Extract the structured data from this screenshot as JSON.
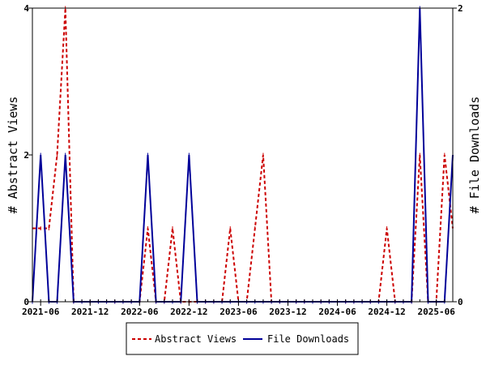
{
  "chart_data": {
    "type": "line",
    "x_ticks": [
      "2021-06",
      "2021-12",
      "2022-06",
      "2022-12",
      "2023-06",
      "2023-12",
      "2024-06",
      "2024-12",
      "2025-06"
    ],
    "x_range": [
      "2021-05",
      "2025-08"
    ],
    "y_left": {
      "label": "# Abstract Views",
      "ticks": [
        0,
        2,
        4
      ],
      "range": [
        0,
        4
      ]
    },
    "y_right": {
      "label": "# File Downloads",
      "ticks": [
        0,
        2
      ],
      "range": [
        0,
        2
      ]
    },
    "series": [
      {
        "name": "Abstract Views",
        "axis": "left",
        "color": "#cc0000",
        "style": "dashed",
        "points": [
          [
            "2021-05",
            1
          ],
          [
            "2021-06",
            1
          ],
          [
            "2021-07",
            1
          ],
          [
            "2021-08",
            2
          ],
          [
            "2021-09",
            4
          ],
          [
            "2021-10",
            0
          ],
          [
            "2021-11",
            0
          ],
          [
            "2021-12",
            0
          ],
          [
            "2022-01",
            0
          ],
          [
            "2022-02",
            0
          ],
          [
            "2022-03",
            0
          ],
          [
            "2022-04",
            0
          ],
          [
            "2022-05",
            0
          ],
          [
            "2022-06",
            0
          ],
          [
            "2022-07",
            1
          ],
          [
            "2022-08",
            0
          ],
          [
            "2022-09",
            0
          ],
          [
            "2022-10",
            1
          ],
          [
            "2022-11",
            0
          ],
          [
            "2022-12",
            0
          ],
          [
            "2023-01",
            0
          ],
          [
            "2023-02",
            0
          ],
          [
            "2023-03",
            0
          ],
          [
            "2023-04",
            0
          ],
          [
            "2023-05",
            1
          ],
          [
            "2023-06",
            0
          ],
          [
            "2023-07",
            0
          ],
          [
            "2023-08",
            1
          ],
          [
            "2023-09",
            2
          ],
          [
            "2023-10",
            0
          ],
          [
            "2023-11",
            0
          ],
          [
            "2023-12",
            0
          ],
          [
            "2024-01",
            0
          ],
          [
            "2024-02",
            0
          ],
          [
            "2024-03",
            0
          ],
          [
            "2024-04",
            0
          ],
          [
            "2024-05",
            0
          ],
          [
            "2024-06",
            0
          ],
          [
            "2024-07",
            0
          ],
          [
            "2024-08",
            0
          ],
          [
            "2024-09",
            0
          ],
          [
            "2024-10",
            0
          ],
          [
            "2024-11",
            0
          ],
          [
            "2024-12",
            1
          ],
          [
            "2025-01",
            0
          ],
          [
            "2025-02",
            0
          ],
          [
            "2025-03",
            0
          ],
          [
            "2025-04",
            2
          ],
          [
            "2025-05",
            0
          ],
          [
            "2025-06",
            0
          ],
          [
            "2025-07",
            2
          ],
          [
            "2025-08",
            1
          ]
        ]
      },
      {
        "name": "File Downloads",
        "axis": "right",
        "color": "#000099",
        "style": "solid",
        "points": [
          [
            "2021-05",
            0
          ],
          [
            "2021-06",
            1
          ],
          [
            "2021-07",
            0
          ],
          [
            "2021-08",
            0
          ],
          [
            "2021-09",
            1
          ],
          [
            "2021-10",
            0
          ],
          [
            "2021-11",
            0
          ],
          [
            "2021-12",
            0
          ],
          [
            "2022-01",
            0
          ],
          [
            "2022-02",
            0
          ],
          [
            "2022-03",
            0
          ],
          [
            "2022-04",
            0
          ],
          [
            "2022-05",
            0
          ],
          [
            "2022-06",
            0
          ],
          [
            "2022-07",
            1
          ],
          [
            "2022-08",
            0
          ],
          [
            "2022-09",
            0
          ],
          [
            "2022-10",
            0
          ],
          [
            "2022-11",
            0
          ],
          [
            "2022-12",
            1
          ],
          [
            "2023-01",
            0
          ],
          [
            "2023-02",
            0
          ],
          [
            "2023-03",
            0
          ],
          [
            "2023-04",
            0
          ],
          [
            "2023-05",
            0
          ],
          [
            "2023-06",
            0
          ],
          [
            "2023-07",
            0
          ],
          [
            "2023-08",
            0
          ],
          [
            "2023-09",
            0
          ],
          [
            "2023-10",
            0
          ],
          [
            "2023-11",
            0
          ],
          [
            "2023-12",
            0
          ],
          [
            "2024-01",
            0
          ],
          [
            "2024-02",
            0
          ],
          [
            "2024-03",
            0
          ],
          [
            "2024-04",
            0
          ],
          [
            "2024-05",
            0
          ],
          [
            "2024-06",
            0
          ],
          [
            "2024-07",
            0
          ],
          [
            "2024-08",
            0
          ],
          [
            "2024-09",
            0
          ],
          [
            "2024-10",
            0
          ],
          [
            "2024-11",
            0
          ],
          [
            "2024-12",
            0
          ],
          [
            "2025-01",
            0
          ],
          [
            "2025-02",
            0
          ],
          [
            "2025-03",
            0
          ],
          [
            "2025-04",
            2
          ],
          [
            "2025-05",
            0
          ],
          [
            "2025-06",
            0
          ],
          [
            "2025-07",
            0
          ],
          [
            "2025-08",
            1
          ]
        ]
      }
    ],
    "legend": {
      "placement": "bottom-center",
      "entries": [
        "Abstract Views",
        "File Downloads"
      ]
    },
    "grid": false
  }
}
